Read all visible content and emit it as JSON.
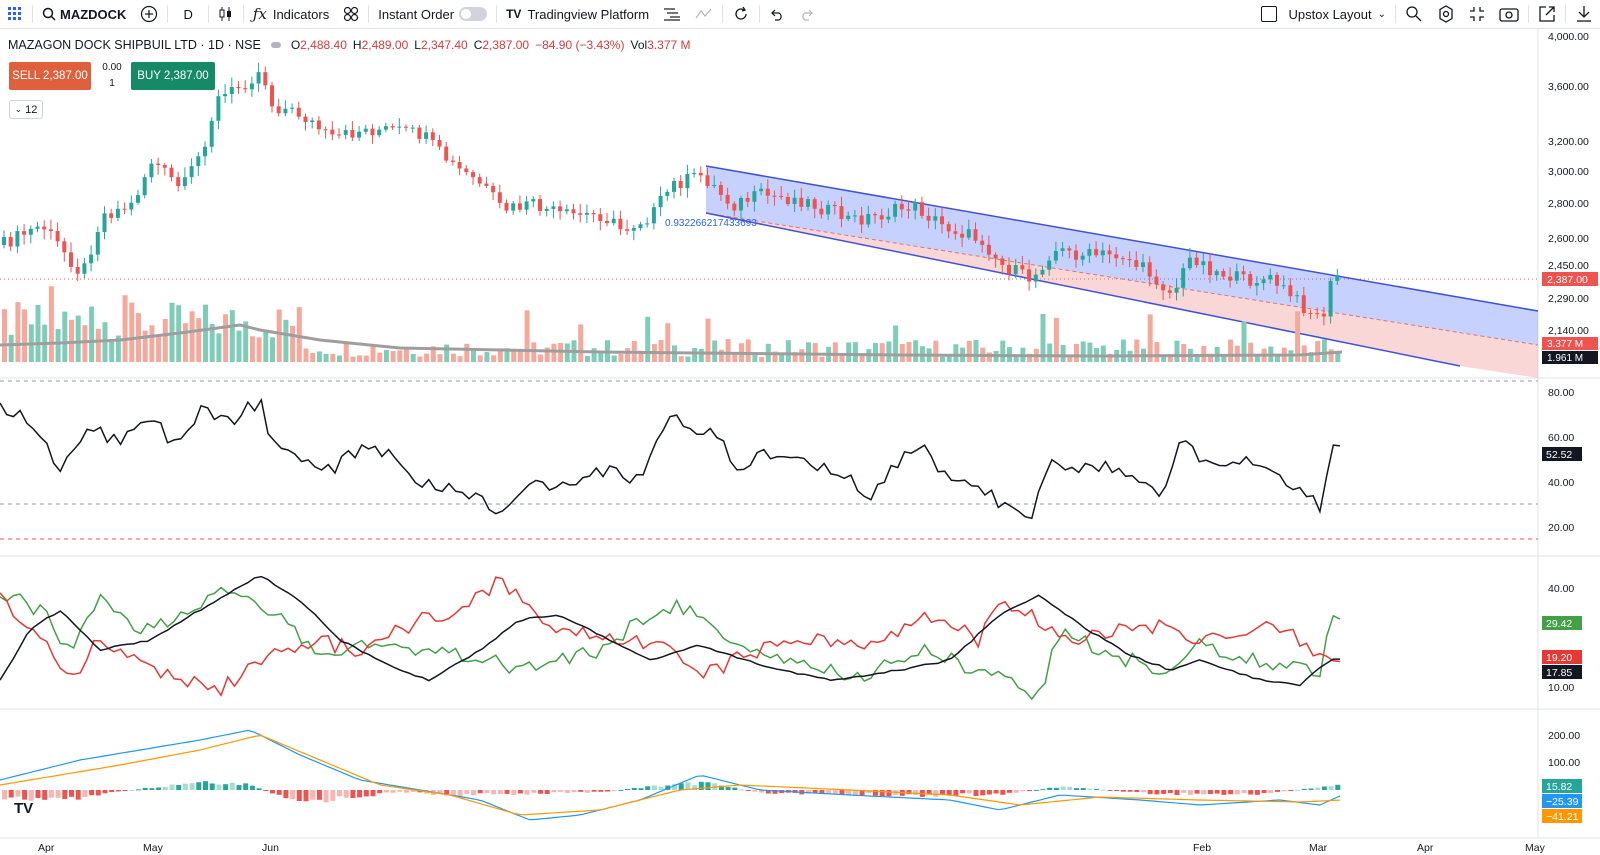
{
  "toolbar": {
    "symbol": "MAZDOCK",
    "interval": "D",
    "indicators_label": "Indicators",
    "instant_order_label": "Instant Order",
    "platform_label": "Tradingview Platform",
    "layout_label": "Upstox Layout"
  },
  "legend": {
    "name": "MAZAGON DOCK SHIPBUIL LTD · 1D · NSE",
    "o_label": "O",
    "o": "2,488.40",
    "h_label": "H",
    "h": "2,489.00",
    "l_label": "L",
    "l": "2,347.40",
    "c_label": "C",
    "c": "2,387.00",
    "change": "−84.90 (−3.43%)",
    "vol_label": "Vol",
    "vol": "3.377 M"
  },
  "trade": {
    "sell": "SELL 2,387.00",
    "buy": "BUY 2,387.00",
    "spread": "0.00",
    "qty": "1",
    "collapse": "12"
  },
  "price_axis": {
    "ticks": [
      "4,000.00",
      "3,600.00",
      "3,200.00",
      "3,000.00",
      "2,800.00",
      "2,600.00",
      "2,450.00",
      "2,290.00",
      "2,140.00"
    ],
    "last_price": "2,387.00",
    "vol_badge": "3.377 M",
    "vol_ma_badge": "1.961 M"
  },
  "channel_label": "0.932266217433693",
  "rsi": {
    "ticks": [
      "80.00",
      "60.00",
      "40.00",
      "20.00"
    ],
    "value": "52.52"
  },
  "dmi": {
    "ticks": [
      "40.00",
      "10.00"
    ],
    "plus": "29.42",
    "minus": "19.20",
    "adx": "17.85"
  },
  "macd": {
    "ticks": [
      "200.00",
      "100.00"
    ],
    "hist": "15.82",
    "macd": "−25.39",
    "signal": "−41.21"
  },
  "time_axis": [
    "Apr",
    "May",
    "Jun",
    "Feb",
    "Mar",
    "Apr",
    "May"
  ],
  "colors": {
    "up": "#26a69a",
    "down": "#ef5350",
    "rsi": "#131722",
    "dmi_plus": "#43a047",
    "dmi_minus": "#e53935",
    "macd": "#2196f3",
    "signal": "#ff9800"
  }
}
